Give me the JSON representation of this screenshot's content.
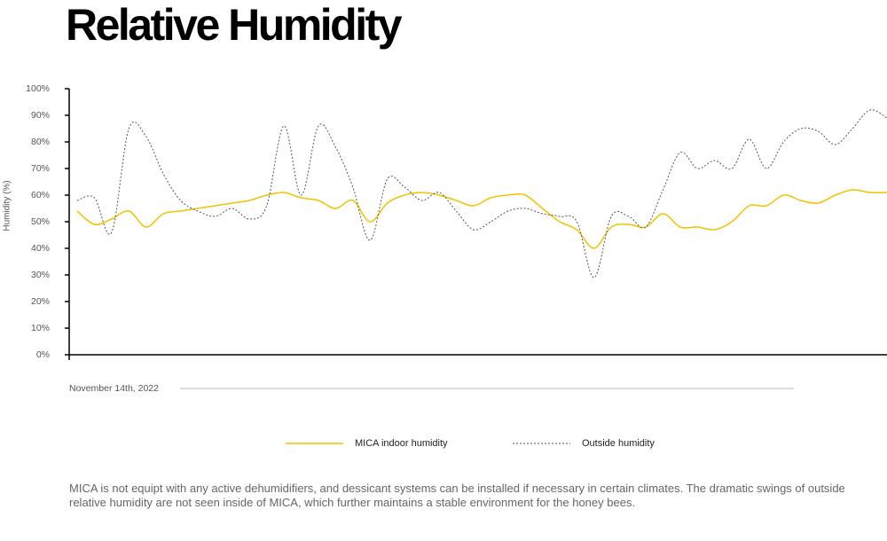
{
  "chart_data": {
    "type": "line",
    "title": "Relative Humidity",
    "y_label": "Humidity (%)",
    "date_label": "November 14th, 2022",
    "categories": [
      null,
      null,
      null,
      null,
      null,
      null,
      null,
      null,
      null,
      null,
      null,
      null,
      null,
      null,
      null,
      null,
      null,
      null,
      null,
      null,
      null,
      null,
      null,
      null,
      null,
      null,
      null,
      null,
      null,
      null,
      null,
      null,
      null,
      null,
      null,
      null,
      null,
      null,
      null,
      null,
      null,
      null,
      null,
      null,
      null,
      null,
      null,
      null
    ],
    "series": [
      {
        "name": "MICA indoor humidity",
        "color": "#f2c200",
        "style": "solid",
        "values": [
          54,
          49,
          51,
          54,
          48,
          53,
          54,
          55,
          56,
          57,
          58,
          60,
          61,
          59,
          58,
          55,
          58,
          50,
          57,
          60,
          61,
          60,
          58,
          56,
          59,
          60,
          60,
          55,
          50,
          47,
          40,
          48,
          49,
          48,
          53,
          48,
          48,
          47,
          50,
          56,
          56,
          60,
          58,
          57,
          60,
          62,
          61,
          61
        ]
      },
      {
        "name": "Outside humidity",
        "color": "#555555",
        "style": "dotted",
        "values": [
          58,
          59,
          46,
          85,
          82,
          68,
          58,
          54,
          52,
          55,
          51,
          56,
          86,
          60,
          86,
          78,
          63,
          43,
          66,
          63,
          58,
          61,
          54,
          47,
          50,
          54,
          55,
          53,
          52,
          50,
          29,
          52,
          52,
          48,
          62,
          76,
          70,
          73,
          70,
          81,
          70,
          80,
          85,
          84,
          79,
          85,
          92,
          89
        ]
      }
    ],
    "ylim": [
      0,
      100
    ],
    "yticks": [
      {
        "value": 0,
        "label": "0%"
      },
      {
        "value": 10,
        "label": "10%"
      },
      {
        "value": 20,
        "label": "20%"
      },
      {
        "value": 30,
        "label": "30%"
      },
      {
        "value": 40,
        "label": "40%"
      },
      {
        "value": 50,
        "label": "50%"
      },
      {
        "value": 60,
        "label": "60%"
      },
      {
        "value": 70,
        "label": "70%"
      },
      {
        "value": 80,
        "label": "80%"
      },
      {
        "value": 90,
        "label": "90%"
      },
      {
        "value": 100,
        "label": "100%"
      }
    ],
    "legend": "bottom"
  },
  "caption": "MICA is not equipt with any active dehumidifiers, and dessicant systems can be installed if necessary in certain climates. The dramatic swings of outside relative humidity are not seen inside of MICA, which further maintains a stable environment for the honey bees."
}
